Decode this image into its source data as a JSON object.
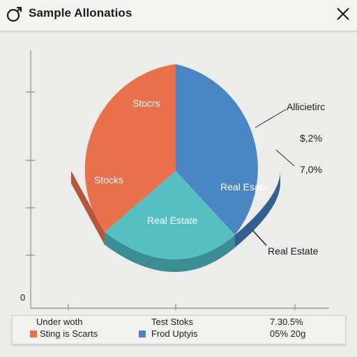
{
  "window": {
    "title": "Sample Allonatios",
    "app_icon": "circle-arrow-icon",
    "close_icon": "close-icon"
  },
  "colors": {
    "stocks": "#e8704a",
    "real_estate_blue": "#4a86c4",
    "real_estate_teal": "#56bfc2"
  },
  "chart_data": {
    "type": "pie",
    "slices": [
      {
        "label": "Real Estate",
        "value": 40,
        "color": "#4a86c4"
      },
      {
        "label": "Real Estate",
        "value": 25,
        "color": "#56bfc2"
      },
      {
        "label": "Stocks",
        "value": 35,
        "color": "#e8704a"
      }
    ],
    "slice_labels": {
      "stocks_top": "Stocrs",
      "stocks": "Stocks",
      "real_estate_right": "Real Esate",
      "real_estate_bottom": "Real Estate"
    },
    "annotations": {
      "callout_title": "Allicietirc",
      "value_1": "$,2%",
      "value_2": "7,0%",
      "callout_bottom": "Real Estate"
    },
    "y_tick_zero": "0"
  },
  "legend": {
    "col1": {
      "header": "Under woth",
      "item": "Sting is Scarts"
    },
    "col2": {
      "header": "Test Stoks",
      "item": "Frod Uptyis"
    },
    "col3": {
      "header": "7.30.5%",
      "item": "05% 20g"
    }
  }
}
